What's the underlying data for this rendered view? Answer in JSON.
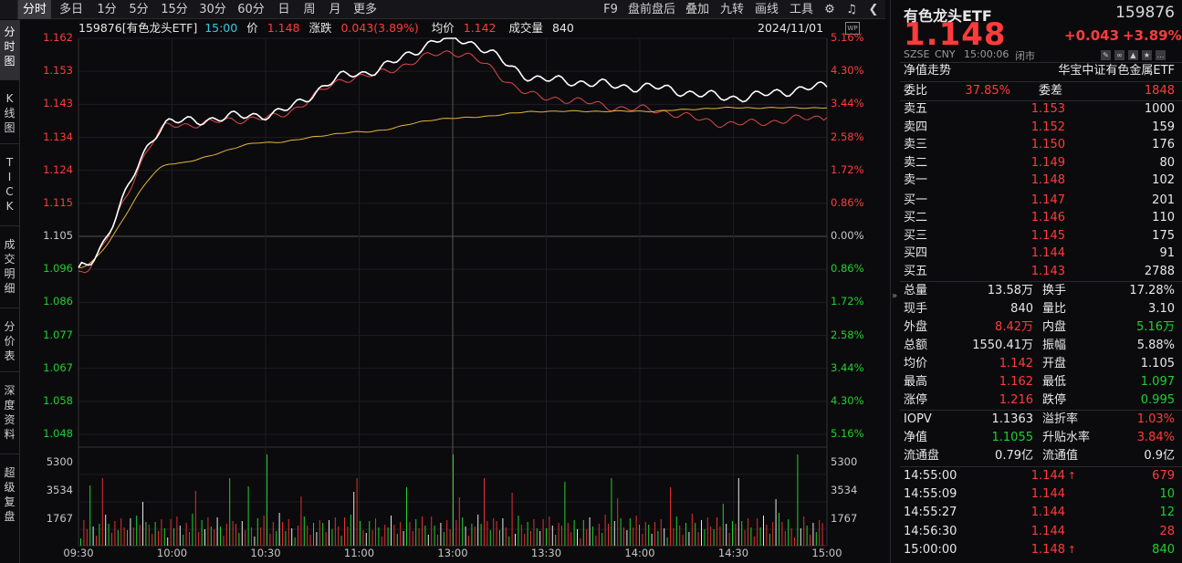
{
  "tabs": [
    "分时",
    "多日",
    "1分",
    "5分",
    "15分",
    "30分",
    "60分",
    "日",
    "周",
    "月",
    "更多"
  ],
  "right_tools": [
    "F9",
    "盘前盘后",
    "叠加",
    "九转",
    "画线",
    "工具"
  ],
  "sidebar": [
    "分\n时\n图",
    "K\n线\n图",
    "T\nI\nC\nK",
    "成\n交\n明\n细",
    "分\n价\n表",
    "深\n度\n资\n料",
    "超\n级\n复\n盘"
  ],
  "info": {
    "code": "159876[有色龙头ETF]",
    "time": "15:00",
    "price_label": "价",
    "price": "1.148",
    "chg_label": "涨跌",
    "chg": "0.043(3.89%)",
    "avg_label": "均价",
    "avg": "1.142",
    "vol_label": "成交量",
    "vol": "840",
    "date": "2024/11/01"
  },
  "y_prices": [
    "1.162",
    "1.153",
    "1.143",
    "1.134",
    "1.124",
    "1.115",
    "1.105",
    "1.096",
    "1.086",
    "1.077",
    "1.067",
    "1.058",
    "1.048"
  ],
  "y_pcts": [
    "5.16%",
    "4.30%",
    "3.44%",
    "2.58%",
    "1.72%",
    "0.86%",
    "0.00%",
    "0.86%",
    "1.72%",
    "2.58%",
    "3.44%",
    "4.30%",
    "5.16%"
  ],
  "vol_ticks": [
    "5300",
    "3534",
    "1767"
  ],
  "x_ticks": [
    "09:30",
    "10:00",
    "10:30",
    "11:00",
    "13:00",
    "13:30",
    "14:00",
    "14:30",
    "15:00"
  ],
  "chart_data": {
    "type": "line",
    "x": [
      "09:30",
      "10:00",
      "10:30",
      "11:00",
      "11:30/13:00",
      "13:30",
      "14:00",
      "14:30",
      "15:00"
    ],
    "series": [
      {
        "name": "价",
        "values": [
          1.096,
          1.138,
          1.14,
          1.152,
          1.162,
          1.15,
          1.148,
          1.145,
          1.148
        ]
      },
      {
        "name": "均价",
        "values": [
          1.096,
          1.126,
          1.132,
          1.135,
          1.139,
          1.141,
          1.141,
          1.142,
          1.142
        ]
      }
    ],
    "ylim": [
      1.048,
      1.162
    ],
    "prev_close": 1.105
  },
  "quote": {
    "name": "有色龙头ETF",
    "code": "159876",
    "price": "1.148",
    "change": "+0.043",
    "change_pct": "+3.89%",
    "exch": "SZSE",
    "cur": "CNY",
    "ts": "15:00:06",
    "status": "闭市"
  },
  "nav_trend": "净值走势",
  "index_name": "华宝中证有色金属ETF",
  "weibi": {
    "l1": "委比",
    "v1": "37.85%",
    "l2": "委差",
    "v2": "1848"
  },
  "asks": [
    {
      "l": "卖五",
      "p": "1.153",
      "v": "1000"
    },
    {
      "l": "卖四",
      "p": "1.152",
      "v": "159"
    },
    {
      "l": "卖三",
      "p": "1.150",
      "v": "176"
    },
    {
      "l": "卖二",
      "p": "1.149",
      "v": "80"
    },
    {
      "l": "卖一",
      "p": "1.148",
      "v": "102"
    }
  ],
  "bids": [
    {
      "l": "买一",
      "p": "1.147",
      "v": "201"
    },
    {
      "l": "买二",
      "p": "1.146",
      "v": "110"
    },
    {
      "l": "买三",
      "p": "1.145",
      "v": "175"
    },
    {
      "l": "买四",
      "p": "1.144",
      "v": "91"
    },
    {
      "l": "买五",
      "p": "1.143",
      "v": "2788"
    }
  ],
  "stats": [
    {
      "l1": "总量",
      "v1": "13.58万",
      "l2": "换手",
      "v2": "17.28%",
      "c1": "white",
      "c2": "white"
    },
    {
      "l1": "现手",
      "v1": "840",
      "l2": "量比",
      "v2": "3.10",
      "c1": "white",
      "c2": "white"
    },
    {
      "l1": "外盘",
      "v1": "8.42万",
      "l2": "内盘",
      "v2": "5.16万",
      "c1": "red",
      "c2": "green"
    },
    {
      "l1": "总额",
      "v1": "1550.41万",
      "l2": "振幅",
      "v2": "5.88%",
      "c1": "white",
      "c2": "white"
    },
    {
      "l1": "均价",
      "v1": "1.142",
      "l2": "开盘",
      "v2": "1.105",
      "c1": "red",
      "c2": "white"
    },
    {
      "l1": "最高",
      "v1": "1.162",
      "l2": "最低",
      "v2": "1.097",
      "c1": "red",
      "c2": "green"
    },
    {
      "l1": "涨停",
      "v1": "1.216",
      "l2": "跌停",
      "v2": "0.995",
      "c1": "red",
      "c2": "green"
    }
  ],
  "iopv": [
    {
      "l1": "IOPV",
      "v1": "1.1363",
      "l2": "溢折率",
      "v2": "1.03%",
      "c1": "white",
      "c2": "red"
    },
    {
      "l1": "净值",
      "v1": "1.1055",
      "l2": "升贴水率",
      "v2": "3.84%",
      "c1": "green",
      "c2": "red"
    },
    {
      "l1": "流通盘",
      "v1": "0.79亿",
      "l2": "流通值",
      "v2": "0.9亿",
      "c1": "white",
      "c2": "white"
    }
  ],
  "ticks": [
    {
      "t": "14:55:00",
      "p": "1.144",
      "arrow": "↑",
      "v": "679",
      "vc": "red"
    },
    {
      "t": "14:55:09",
      "p": "1.144",
      "arrow": "",
      "v": "10",
      "vc": "green"
    },
    {
      "t": "14:55:27",
      "p": "1.144",
      "arrow": "",
      "v": "12",
      "vc": "green"
    },
    {
      "t": "14:56:30",
      "p": "1.144",
      "arrow": "",
      "v": "28",
      "vc": "red"
    },
    {
      "t": "15:00:00",
      "p": "1.148",
      "arrow": "↑",
      "v": "840",
      "vc": "green"
    }
  ]
}
